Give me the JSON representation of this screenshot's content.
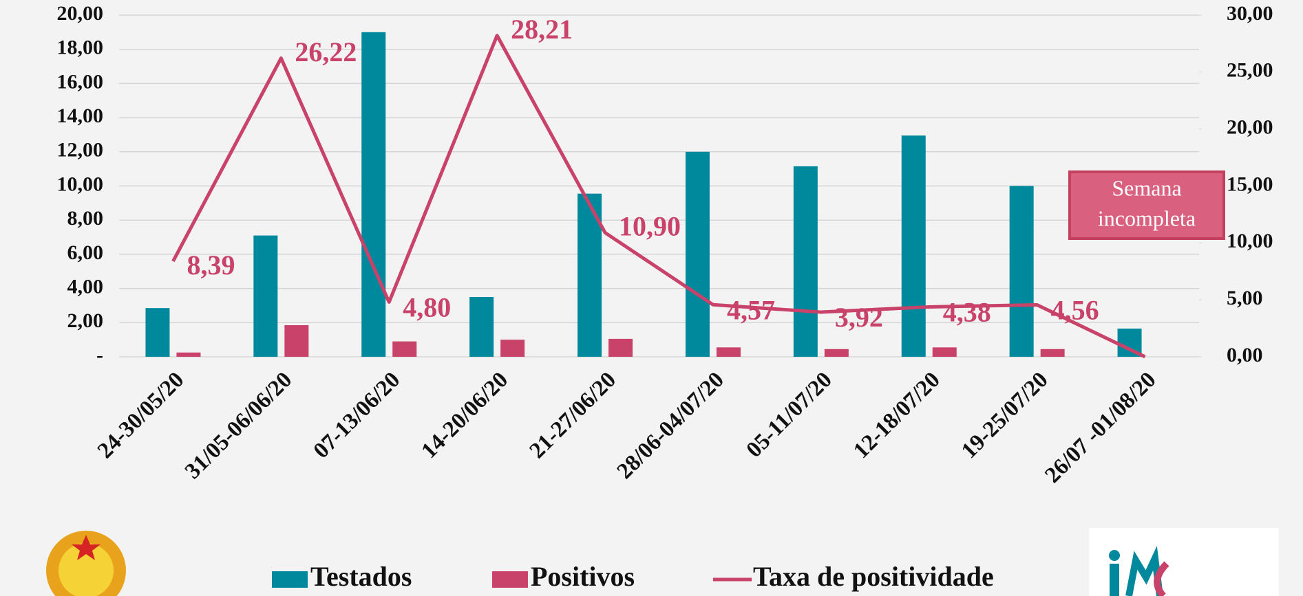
{
  "chart_data": {
    "type": "bar",
    "categories": [
      "24-30/05/20",
      "31/05-06/06/20",
      "07-13/06/20",
      "14-20/06/20",
      "21-27/06/20",
      "28/06-04/07/20",
      "05-11/07/20",
      "12-18/07/20",
      "19-25/07/20",
      "26/07 -01/08/20"
    ],
    "series": [
      {
        "name": "Testados",
        "type": "bar",
        "color": "#00889c",
        "values": [
          2.85,
          7.1,
          19.0,
          3.5,
          9.55,
          12.0,
          11.15,
          12.95,
          10.0,
          1.65
        ]
      },
      {
        "name": "Positivos",
        "type": "bar",
        "color": "#c8426a",
        "values": [
          0.25,
          1.85,
          0.9,
          1.0,
          1.05,
          0.55,
          0.45,
          0.55,
          0.45,
          0
        ]
      },
      {
        "name": "Taxa de positividade",
        "type": "line",
        "axis": "y2",
        "color": "#c8426a",
        "values": [
          8.39,
          26.22,
          4.8,
          28.21,
          10.9,
          4.57,
          3.92,
          4.38,
          4.56,
          0
        ],
        "value_labels": [
          "8,39",
          "26,22",
          "4,80",
          "28,21",
          "10,90",
          "4,57",
          "3,92",
          "4,38",
          "4,56",
          null
        ]
      }
    ],
    "ylim": [
      0,
      20
    ],
    "yticks": [
      {
        "value": 0,
        "label": "-"
      },
      {
        "value": 2,
        "label": "2,00"
      },
      {
        "value": 4,
        "label": "4,00"
      },
      {
        "value": 6,
        "label": "6,00"
      },
      {
        "value": 8,
        "label": "8,00"
      },
      {
        "value": 10,
        "label": "10,00"
      },
      {
        "value": 12,
        "label": "12,00"
      },
      {
        "value": 14,
        "label": "14,00"
      },
      {
        "value": 16,
        "label": "16,00"
      },
      {
        "value": 18,
        "label": "18,00"
      },
      {
        "value": 20,
        "label": "20,00"
      }
    ],
    "y2lim": [
      0,
      30
    ],
    "y2ticks": [
      {
        "value": 0,
        "label": "0,00"
      },
      {
        "value": 5,
        "label": "5,00"
      },
      {
        "value": 10,
        "label": "10,00"
      },
      {
        "value": 15,
        "label": "15,00"
      },
      {
        "value": 20,
        "label": "20,00"
      },
      {
        "value": 25,
        "label": "25,00"
      },
      {
        "value": 30,
        "label": "30,00"
      }
    ],
    "grid": true,
    "legend": "bottom",
    "annotation": [
      "Semana",
      "incompleta"
    ]
  }
}
